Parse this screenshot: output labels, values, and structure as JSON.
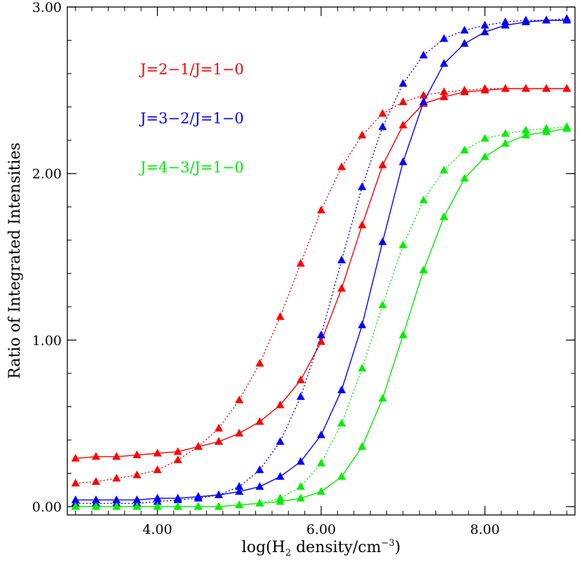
{
  "chart_data": {
    "type": "line",
    "title": "",
    "xlabel": {
      "prefix": "log(H",
      "sub": "2",
      "middle": " density/cm",
      "sup": "−3",
      "suffix": ")"
    },
    "ylabel": "Ratio of Integrated Intensities",
    "xlim": [
      2.9,
      9.1
    ],
    "ylim": [
      -0.05,
      3.0
    ],
    "x_ticks": [
      {
        "value": 4,
        "label": "4.00"
      },
      {
        "value": 6,
        "label": "6.00"
      },
      {
        "value": 8,
        "label": "8.00"
      }
    ],
    "y_ticks": [
      {
        "value": 0,
        "label": "0.00"
      },
      {
        "value": 1,
        "label": "1.00"
      },
      {
        "value": 2,
        "label": "2.00"
      },
      {
        "value": 3,
        "label": "3.00"
      }
    ],
    "x": [
      3.0,
      3.25,
      3.5,
      3.75,
      4.0,
      4.25,
      4.5,
      4.75,
      5.0,
      5.25,
      5.5,
      5.75,
      6.0,
      6.25,
      6.5,
      6.75,
      7.0,
      7.25,
      7.5,
      7.75,
      8.0,
      8.25,
      8.5,
      8.75,
      9.0
    ],
    "legend": [
      {
        "label": "J=2−1/J=1−0",
        "color": "#ff0000"
      },
      {
        "label": "J=3−2/J=1−0",
        "color": "#0000ff"
      },
      {
        "label": "J=4−3/J=1−0",
        "color": "#00ee00"
      }
    ],
    "series": [
      {
        "color": "#ff0000",
        "style": "solid",
        "values": [
          0.29,
          0.3,
          0.3,
          0.31,
          0.32,
          0.33,
          0.36,
          0.39,
          0.44,
          0.51,
          0.61,
          0.76,
          0.99,
          1.31,
          1.69,
          2.05,
          2.29,
          2.42,
          2.46,
          2.49,
          2.5,
          2.51,
          2.51,
          2.51,
          2.51
        ]
      },
      {
        "color": "#ff0000",
        "style": "dotted",
        "values": [
          0.14,
          0.15,
          0.17,
          0.19,
          0.22,
          0.28,
          0.36,
          0.47,
          0.64,
          0.86,
          1.14,
          1.46,
          1.78,
          2.04,
          2.23,
          2.36,
          2.43,
          2.47,
          2.49,
          2.5,
          2.51,
          2.51,
          2.51,
          2.51,
          2.51
        ]
      },
      {
        "color": "#0000ff",
        "style": "solid",
        "values": [
          0.04,
          0.04,
          0.04,
          0.04,
          0.05,
          0.05,
          0.06,
          0.07,
          0.09,
          0.12,
          0.18,
          0.27,
          0.43,
          0.7,
          1.09,
          1.59,
          2.07,
          2.43,
          2.66,
          2.78,
          2.85,
          2.89,
          2.91,
          2.92,
          2.92
        ]
      },
      {
        "color": "#0000ff",
        "style": "dotted",
        "values": [
          0.02,
          0.02,
          0.02,
          0.02,
          0.03,
          0.04,
          0.05,
          0.07,
          0.12,
          0.22,
          0.39,
          0.66,
          1.03,
          1.48,
          1.92,
          2.28,
          2.54,
          2.71,
          2.81,
          2.86,
          2.89,
          2.91,
          2.92,
          2.92,
          2.93
        ]
      },
      {
        "color": "#00ee00",
        "style": "solid",
        "values": [
          0.0,
          0.0,
          0.0,
          0.0,
          0.0,
          0.0,
          0.0,
          0.0,
          0.01,
          0.02,
          0.03,
          0.05,
          0.09,
          0.18,
          0.36,
          0.65,
          1.03,
          1.42,
          1.74,
          1.97,
          2.1,
          2.18,
          2.23,
          2.25,
          2.27
        ]
      },
      {
        "color": "#00ee00",
        "style": "dotted",
        "values": [
          0.0,
          0.0,
          0.0,
          0.0,
          0.0,
          0.0,
          0.0,
          0.0,
          0.01,
          0.02,
          0.05,
          0.12,
          0.26,
          0.5,
          0.83,
          1.21,
          1.57,
          1.84,
          2.02,
          2.14,
          2.21,
          2.24,
          2.26,
          2.27,
          2.28
        ]
      }
    ]
  }
}
